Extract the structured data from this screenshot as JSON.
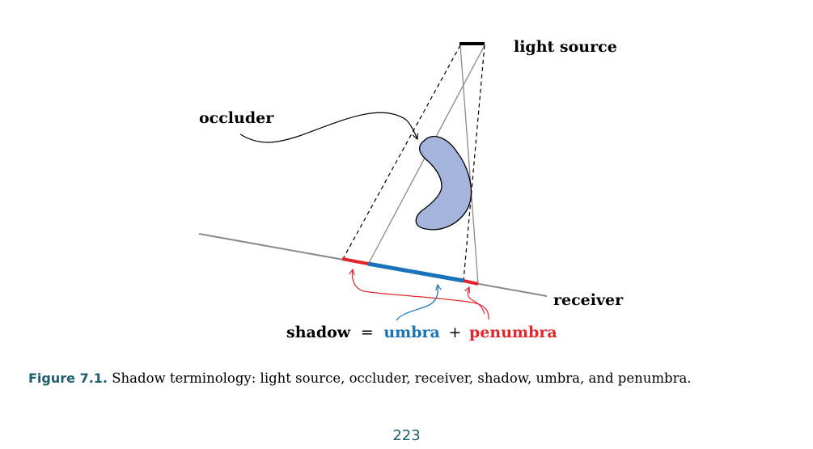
{
  "diagram": {
    "labels": {
      "light_source": "light source",
      "occluder": "occluder",
      "receiver": "receiver"
    },
    "equation": {
      "shadow": "shadow",
      "equals": "=",
      "umbra": "umbra",
      "plus": "+",
      "penumbra": "penumbra"
    },
    "colors": {
      "umbra": "#1a73b8",
      "penumbra": "#e3262c",
      "occluder_fill": "#a4b4dc",
      "receiver_line": "#8a8a8a"
    }
  },
  "caption": {
    "label": "Figure 7.1.",
    "text": "Shadow terminology: light source, occluder, receiver, shadow, umbra, and penumbra."
  },
  "page_number": "223"
}
